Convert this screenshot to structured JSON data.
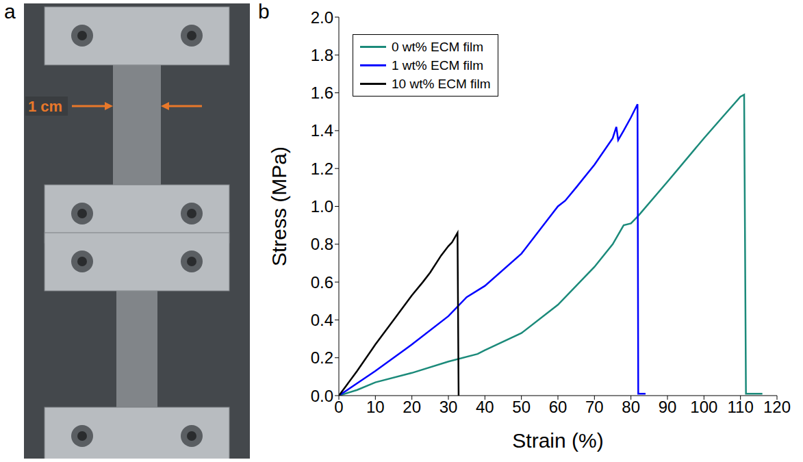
{
  "panel_a": {
    "label": "a",
    "annotation": "1 cm"
  },
  "chart_data": {
    "panel_label": "b",
    "type": "line",
    "x_label": "Strain (%)",
    "y_label": "Stress (MPa)",
    "xlim": [
      0,
      120
    ],
    "xticks": [
      0,
      10,
      20,
      30,
      40,
      50,
      60,
      70,
      80,
      90,
      100,
      110,
      120
    ],
    "ylim": [
      0,
      2
    ],
    "yticks": [
      {
        "value": 0,
        "label": "0.0"
      },
      0.2,
      0.4,
      0.6,
      0.8,
      {
        "value": 1,
        "label": "1.0"
      },
      1.2,
      1.4,
      1.6,
      1.8,
      {
        "value": 2,
        "label": "2.0"
      }
    ],
    "grid": false,
    "legend": "upper left",
    "series": [
      {
        "name": "0 wt% ECM film",
        "color": "#1b8a7a",
        "x": [
          0,
          5,
          10,
          20,
          30,
          38,
          40,
          50,
          60,
          70,
          75,
          78,
          80,
          82,
          90,
          100,
          105,
          110,
          111,
          111.5,
          116
        ],
        "values": [
          0,
          0.03,
          0.07,
          0.12,
          0.18,
          0.22,
          0.24,
          0.33,
          0.48,
          0.68,
          0.8,
          0.9,
          0.91,
          0.95,
          1.13,
          1.36,
          1.47,
          1.58,
          1.59,
          0.01,
          0.01
        ]
      },
      {
        "name": "1 wt% ECM film",
        "color": "#0000ff",
        "x": [
          0,
          10,
          20,
          30,
          35,
          40,
          50,
          58,
          60,
          62,
          65,
          70,
          75,
          76,
          76.5,
          78,
          80,
          81.8,
          82,
          84
        ],
        "values": [
          0,
          0.13,
          0.27,
          0.42,
          0.52,
          0.58,
          0.75,
          0.95,
          1.0,
          1.03,
          1.1,
          1.22,
          1.36,
          1.42,
          1.35,
          1.4,
          1.47,
          1.54,
          0.01,
          0.01
        ]
      },
      {
        "name": "10 wt% ECM film",
        "color": "#000000",
        "x": [
          0,
          5,
          10,
          15,
          20,
          23,
          25,
          28,
          30,
          31,
          32.5,
          32.8,
          33
        ],
        "values": [
          0,
          0.13,
          0.27,
          0.4,
          0.53,
          0.6,
          0.65,
          0.74,
          0.79,
          0.81,
          0.86,
          0,
          0
        ]
      }
    ]
  }
}
